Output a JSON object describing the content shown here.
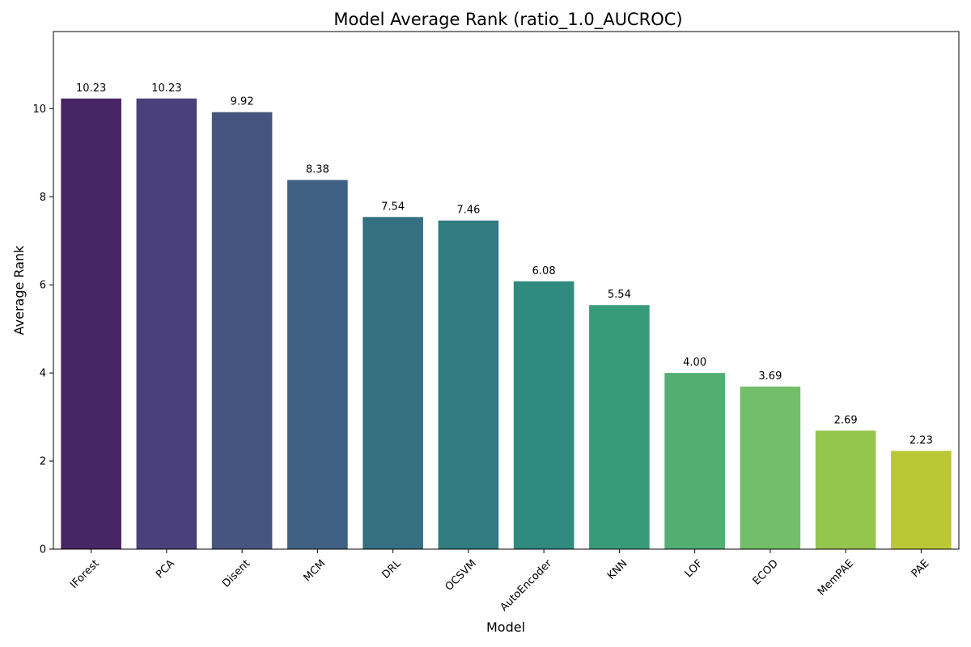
{
  "chart_data": {
    "type": "bar",
    "title": "Model Average Rank (ratio_1.0_AUCROC)",
    "xlabel": "Model",
    "ylabel": "Average Rank",
    "categories": [
      "IForest",
      "PCA",
      "Disent",
      "MCM",
      "DRL",
      "OCSVM",
      "AutoEncoder",
      "KNN",
      "LOF",
      "ECOD",
      "MemPAE",
      "PAE"
    ],
    "values": [
      10.23,
      10.23,
      9.92,
      8.38,
      7.54,
      7.46,
      6.08,
      5.54,
      4.0,
      3.69,
      2.69,
      2.23
    ],
    "value_labels": [
      "10.23",
      "10.23",
      "9.92",
      "8.38",
      "7.54",
      "7.46",
      "6.08",
      "5.54",
      "4.00",
      "3.69",
      "2.69",
      "2.23"
    ],
    "colors": [
      "#482666",
      "#4a417b",
      "#46557f",
      "#3e6082",
      "#357080",
      "#307c80",
      "#2f8a7f",
      "#379b7a",
      "#52ae72",
      "#73bf69",
      "#96c54e",
      "#bbc836"
    ],
    "yticks": [
      0,
      2,
      4,
      6,
      8,
      10
    ],
    "ylim": [
      0,
      11.75
    ],
    "grid": false,
    "legend": "none"
  }
}
